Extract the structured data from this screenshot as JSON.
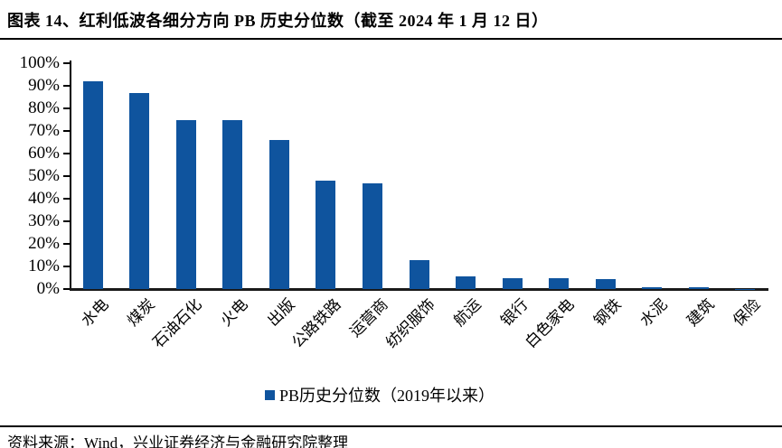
{
  "header": {
    "title": "图表 14、红利低波各细分方向 PB 历史分位数（截至 2024 年 1 月 12 日）"
  },
  "chart_data": {
    "type": "bar",
    "categories": [
      "水电",
      "煤炭",
      "石油石化",
      "火电",
      "出版",
      "公路铁路",
      "运营商",
      "纺织服饰",
      "航运",
      "银行",
      "白色家电",
      "钢铁",
      "水泥",
      "建筑",
      "保险"
    ],
    "values": [
      92,
      87,
      75,
      75,
      66,
      48,
      47,
      13,
      5.5,
      5,
      5,
      4.5,
      1,
      0.8,
      0.2
    ],
    "title": "",
    "xlabel": "",
    "ylabel": "",
    "ylim": [
      0,
      100
    ],
    "ytick_labels": [
      "100%",
      "90%",
      "80%",
      "70%",
      "60%",
      "50%",
      "40%",
      "30%",
      "20%",
      "10%",
      "0%"
    ],
    "grid": false,
    "bar_color": "#0F549E",
    "legend": {
      "label": "PB历史分位数（2019年以来）",
      "position": "bottom",
      "marker_color": "#0F549E"
    }
  },
  "footer": {
    "source": "资料来源：Wind，兴业证券经济与金融研究院整理"
  }
}
